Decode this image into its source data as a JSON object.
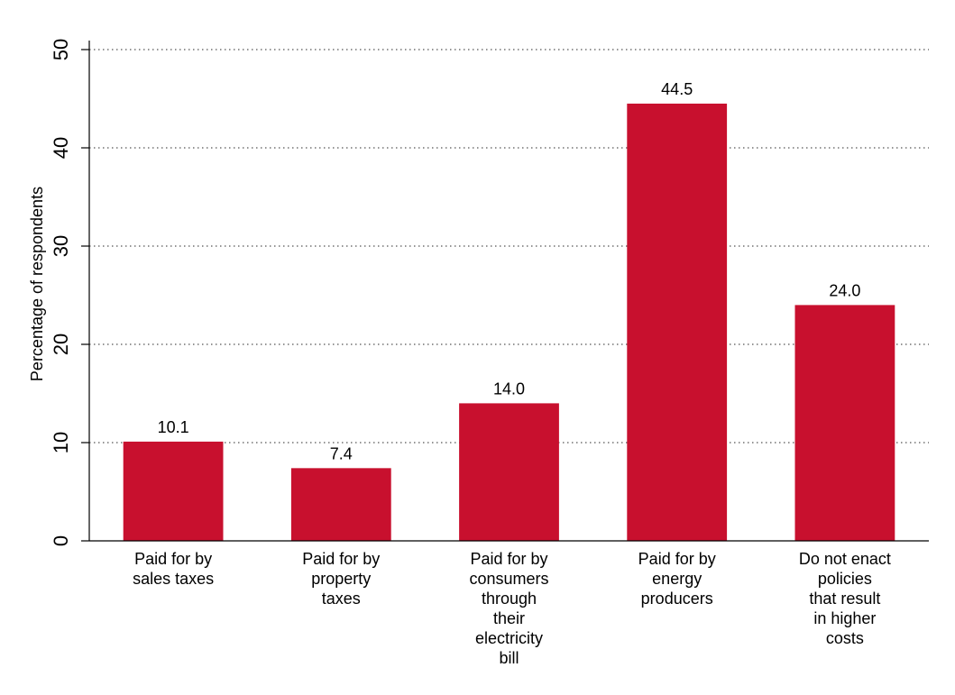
{
  "chart_data": {
    "type": "bar",
    "title": "",
    "xlabel": "",
    "ylabel": "Percentage of respondents",
    "ylim": [
      0,
      50
    ],
    "yticks": [
      0,
      10,
      20,
      30,
      40,
      50
    ],
    "grid": "horizontal dotted",
    "legend": "none",
    "bar_color": "#c8102e",
    "categories": [
      [
        "Paid for by",
        "sales taxes"
      ],
      [
        "Paid for by",
        "property",
        "taxes"
      ],
      [
        "Paid for by",
        "consumers",
        "through",
        "their",
        "electricity",
        "bill"
      ],
      [
        "Paid for by",
        "energy",
        "producers"
      ],
      [
        "Do not enact",
        "policies",
        "that result",
        "in higher",
        "costs"
      ]
    ],
    "values": [
      10.1,
      7.4,
      14.0,
      44.5,
      24.0
    ],
    "value_labels": [
      "10.1",
      "7.4",
      "14.0",
      "44.5",
      "24.0"
    ]
  }
}
